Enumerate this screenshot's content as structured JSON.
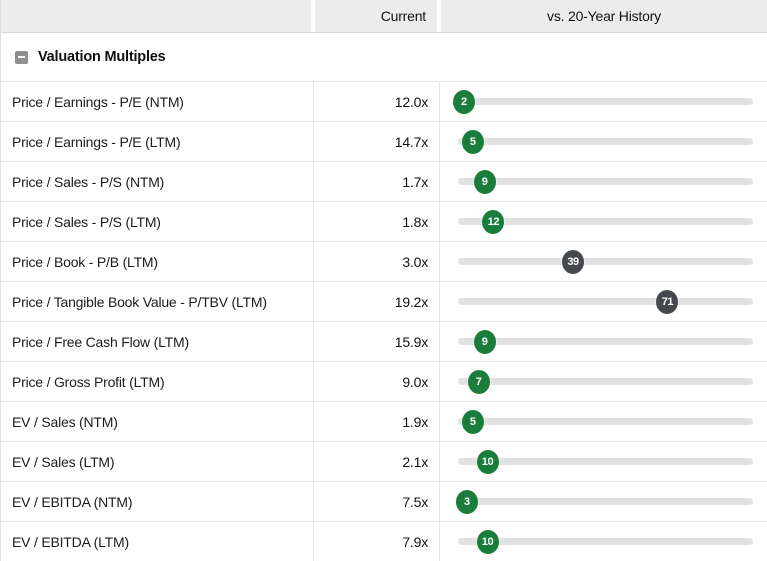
{
  "header": {
    "current_label": "Current",
    "history_label": "vs. 20-Year History"
  },
  "section": {
    "title": "Valuation Multiples",
    "collapse_icon": "minus-icon"
  },
  "colors": {
    "green": "#1a7d3c",
    "gray": "#45494e",
    "track": "#e1e1e1",
    "header_bg": "#ececec"
  },
  "rows": [
    {
      "label": "Price / Earnings - P/E (NTM)",
      "current": "12.0x",
      "percentile": 2,
      "tone": "green"
    },
    {
      "label": "Price / Earnings - P/E (LTM)",
      "current": "14.7x",
      "percentile": 5,
      "tone": "green"
    },
    {
      "label": "Price / Sales - P/S (NTM)",
      "current": "1.7x",
      "percentile": 9,
      "tone": "green"
    },
    {
      "label": "Price / Sales - P/S (LTM)",
      "current": "1.8x",
      "percentile": 12,
      "tone": "green"
    },
    {
      "label": "Price / Book - P/B (LTM)",
      "current": "3.0x",
      "percentile": 39,
      "tone": "gray"
    },
    {
      "label": "Price / Tangible Book Value - P/TBV (LTM)",
      "current": "19.2x",
      "percentile": 71,
      "tone": "gray"
    },
    {
      "label": "Price / Free Cash Flow (LTM)",
      "current": "15.9x",
      "percentile": 9,
      "tone": "green"
    },
    {
      "label": "Price / Gross Profit (LTM)",
      "current": "9.0x",
      "percentile": 7,
      "tone": "green"
    },
    {
      "label": "EV / Sales (NTM)",
      "current": "1.9x",
      "percentile": 5,
      "tone": "green"
    },
    {
      "label": "EV / Sales (LTM)",
      "current": "2.1x",
      "percentile": 10,
      "tone": "green"
    },
    {
      "label": "EV / EBITDA (NTM)",
      "current": "7.5x",
      "percentile": 3,
      "tone": "green"
    },
    {
      "label": "EV / EBITDA (LTM)",
      "current": "7.9x",
      "percentile": 10,
      "tone": "green"
    }
  ]
}
